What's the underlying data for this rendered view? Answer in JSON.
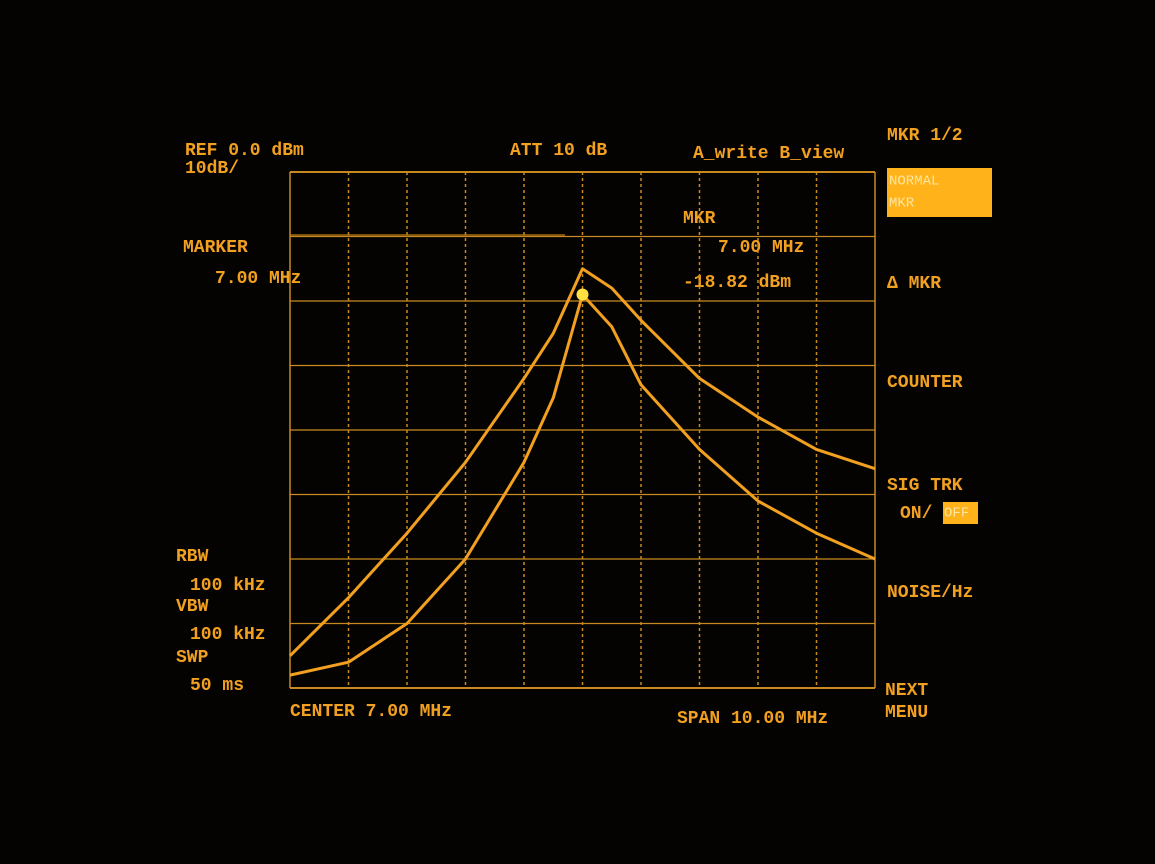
{
  "screen": {
    "ref": "REF 0.0 dBm",
    "scale": "10dB/",
    "att": "ATT 10 dB",
    "trace_mode": "A_write B_view",
    "marker_label": "MARKER",
    "marker_freq": "7.00 MHz",
    "readout": {
      "title": "MKR",
      "freq": "7.00 MHz",
      "level": "-18.82 dBm"
    },
    "rbw_label": "RBW",
    "rbw": "100 kHz",
    "vbw_label": "VBW",
    "vbw": "100 kHz",
    "swp_label": "SWP",
    "swp": "50 ms",
    "center": "CENTER 7.00 MHz",
    "span": "SPAN 10.00 MHz"
  },
  "softkeys": {
    "page": "MKR 1/2",
    "normal": [
      "NORMAL",
      "MKR"
    ],
    "delta": "Δ MKR",
    "counter": "COUNTER",
    "sig_trk": "SIG TRK",
    "sig_trk_on": "ON/",
    "sig_trk_off": "OFF",
    "noise": "NOISE/Hz",
    "next": [
      "NEXT",
      "MENU"
    ]
  },
  "chart_data": {
    "type": "line",
    "x": [
      2,
      3,
      4,
      5,
      6,
      6.5,
      7,
      7.5,
      8,
      9,
      10,
      11,
      12
    ],
    "xlim": [
      2,
      12
    ],
    "ylim": [
      -80,
      0
    ],
    "xticks": [
      2,
      3,
      4,
      5,
      6,
      7,
      8,
      9,
      10,
      11,
      12
    ],
    "yticks": [
      -80,
      -70,
      -60,
      -50,
      -40,
      -30,
      -20,
      -10,
      0
    ],
    "grid": true,
    "series": [
      {
        "color": "#f2a020",
        "values": [
          -75,
          -66,
          -56,
          -45,
          -32,
          -25,
          -15,
          -18,
          -23,
          -32,
          -38,
          -43,
          -46
        ]
      },
      {
        "color": "#f2a020",
        "values": [
          -78,
          -76,
          -70,
          -60,
          -45,
          -35,
          -19,
          -24,
          -33,
          -43,
          -51,
          -56,
          -60
        ]
      }
    ]
  }
}
